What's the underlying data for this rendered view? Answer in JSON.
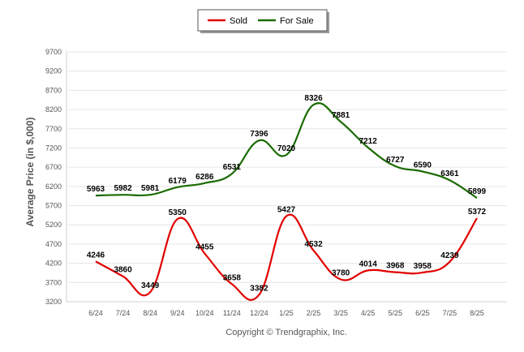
{
  "chart_data": {
    "type": "line",
    "ylabel": "Average Price (in $,000)",
    "footer": "Copyright © Trendgraphix, Inc.",
    "categories": [
      "6/24",
      "7/24",
      "8/24",
      "9/24",
      "10/24",
      "11/24",
      "12/24",
      "1/25",
      "2/25",
      "3/25",
      "4/25",
      "5/25",
      "6/25",
      "7/25",
      "8/25"
    ],
    "y_ticks": [
      3200,
      3700,
      4200,
      4700,
      5200,
      5700,
      6200,
      6700,
      7200,
      7700,
      8200,
      8700,
      9200,
      9700
    ],
    "ylim": [
      3200,
      9700
    ],
    "legend_position": "top-center",
    "grid": true,
    "series": [
      {
        "name": "Sold",
        "color": "#e00000",
        "values": [
          4246,
          3860,
          3449,
          5350,
          4455,
          3658,
          3382,
          5427,
          4532,
          3780,
          4014,
          3968,
          3958,
          4239,
          5372
        ]
      },
      {
        "name": "For Sale",
        "color": "#1a6b00",
        "values": [
          5963,
          5982,
          5981,
          6179,
          6286,
          6531,
          7396,
          7020,
          8326,
          7881,
          7212,
          6727,
          6590,
          6361,
          5899
        ]
      }
    ]
  }
}
